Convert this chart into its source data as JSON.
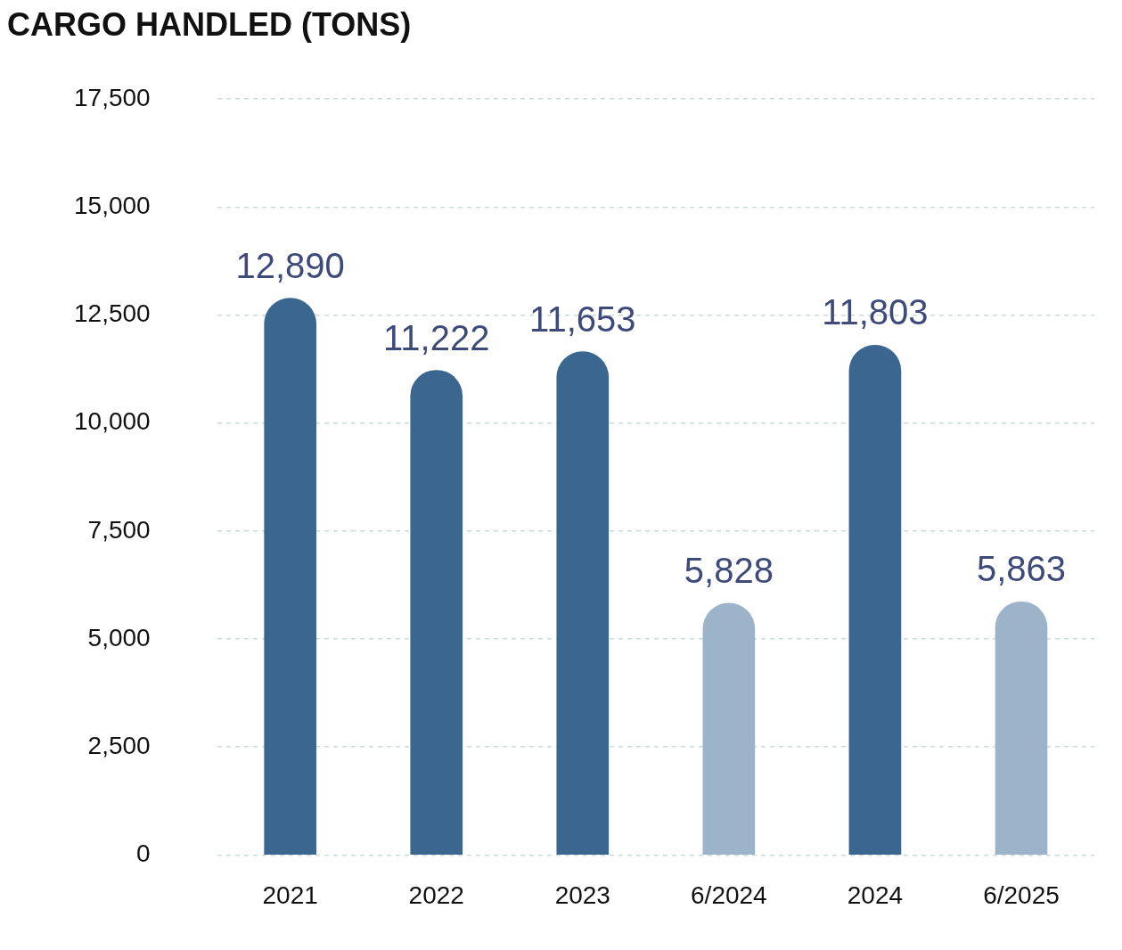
{
  "chart_data": {
    "type": "bar",
    "title": "CARGO HANDLED (TONS)",
    "categories": [
      "2021",
      "2022",
      "2023",
      "6/2024",
      "2024",
      "6/2025"
    ],
    "values": [
      12890,
      11222,
      11653,
      5828,
      11803,
      5863
    ],
    "colors": [
      "#3a6690",
      "#3a6690",
      "#3a6690",
      "#9db3c9",
      "#3a6690",
      "#9db3c9"
    ],
    "ylim": [
      0,
      17500
    ],
    "yticks": [
      0,
      {
        "value": 2500,
        "label": "2,500"
      },
      {
        "value": 5000,
        "label": "5,000"
      },
      {
        "value": 7500,
        "label": "7,500"
      },
      {
        "value": 10000,
        "label": "10,000"
      },
      {
        "value": 12500,
        "label": "12,500"
      },
      {
        "value": 15000,
        "label": "15,000"
      },
      {
        "value": 17500,
        "label": "17,500"
      }
    ],
    "value_labels": [
      "12,890",
      "11,222",
      "11,653",
      "5,828",
      "11,803",
      "5,863"
    ],
    "grid": "y",
    "legend": false
  }
}
